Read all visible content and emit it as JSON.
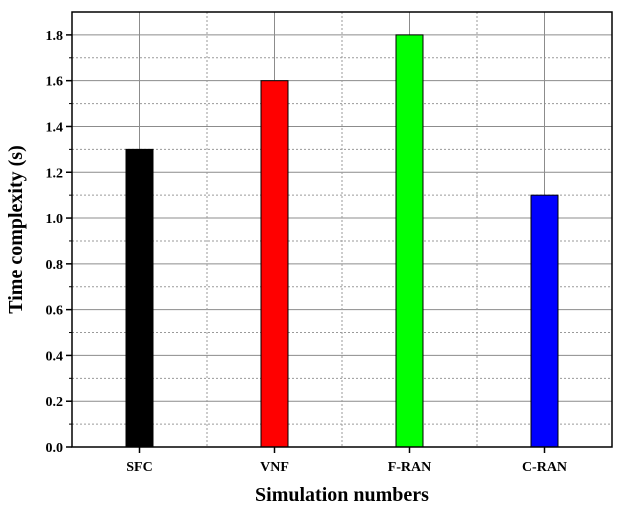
{
  "chart_data": {
    "type": "bar",
    "categories": [
      "SFC",
      "VNF",
      "F-RAN",
      "C-RAN"
    ],
    "values": [
      1.3,
      1.6,
      1.8,
      1.1
    ],
    "colors": [
      "#000000",
      "#ff0000",
      "#00ff00",
      "#0000ff"
    ],
    "xlabel": "Simulation numbers",
    "ylabel": "Time complexity (s)",
    "ylim": [
      0,
      1.9
    ],
    "yticks": [
      "0.0",
      "0.2",
      "0.4",
      "0.6",
      "0.8",
      "1.0",
      "1.2",
      "1.4",
      "1.6",
      "1.8"
    ],
    "grid": true,
    "minor_grid": true
  }
}
